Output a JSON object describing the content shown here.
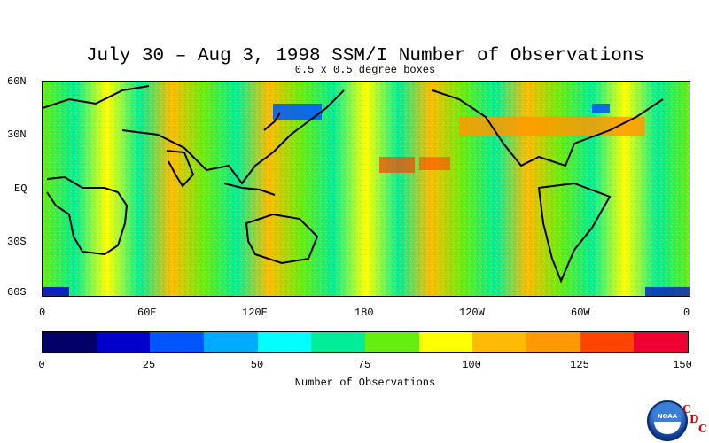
{
  "title": "July 30 – Aug 3, 1998 SSM/I Number of Observations",
  "subtitle": "0.5 x 0.5 degree boxes",
  "map": {
    "lat_labels": [
      "60N",
      "30N",
      "EQ",
      "30S",
      "60S"
    ],
    "lon_labels": [
      "0",
      "60E",
      "120E",
      "180",
      "120W",
      "60W",
      "0"
    ],
    "lat_range": [
      -60,
      60
    ],
    "lon_range": [
      0,
      360
    ]
  },
  "colorbar": {
    "title": "Number of Observations",
    "tick_labels": [
      "0",
      "25",
      "50",
      "75",
      "100",
      "125",
      "150"
    ],
    "range": [
      0,
      150
    ],
    "colors": [
      "#000066",
      "#0000cc",
      "#0055ff",
      "#00aaff",
      "#00ffff",
      "#00ee99",
      "#66ee11",
      "#ffff00",
      "#ffbb00",
      "#ff9900",
      "#ff4400",
      "#ee0033"
    ]
  },
  "logo": {
    "name": "noaa-logo",
    "text": "NOAA",
    "letters": [
      "C",
      "D",
      "C"
    ]
  }
}
